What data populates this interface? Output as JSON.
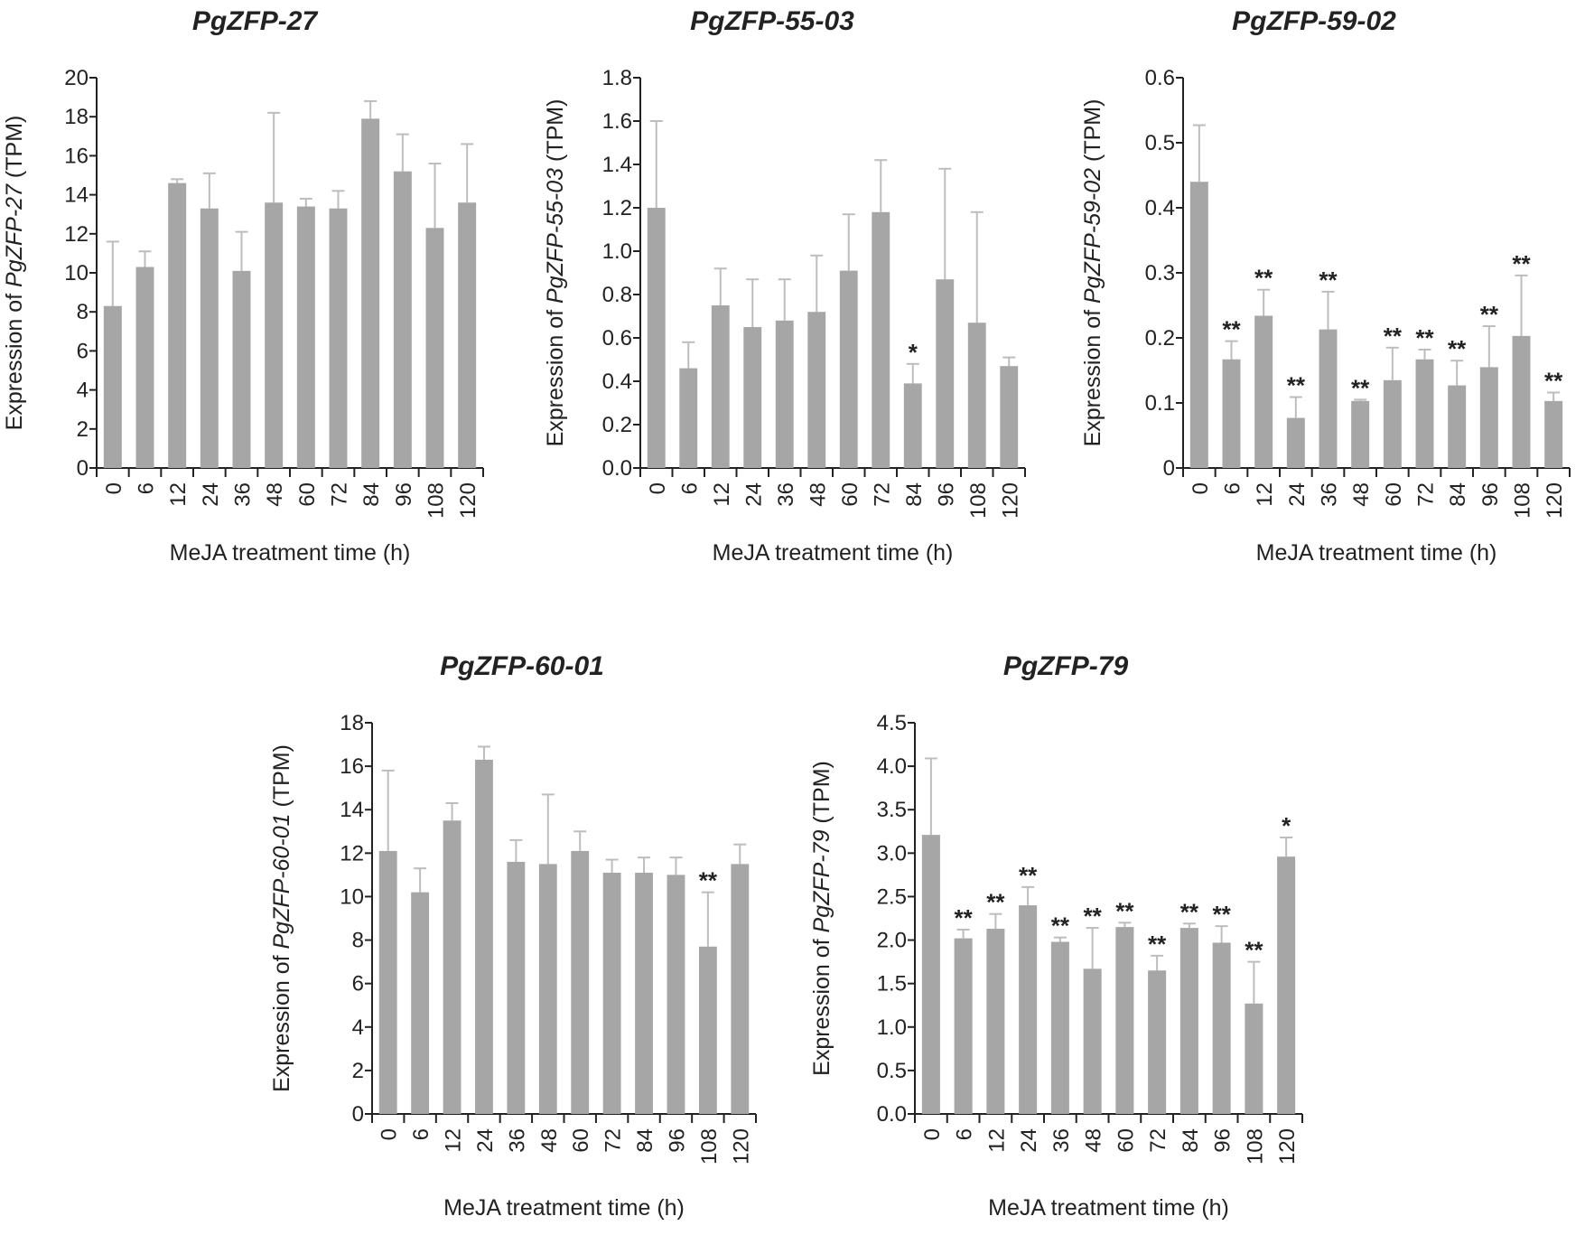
{
  "colors": {
    "bar": "#a6a6a6",
    "error_bar": "#bdbdbd",
    "axis": "#222222",
    "text": "#222222"
  },
  "chart_data": [
    {
      "type": "bar",
      "title": "PgZFP-27",
      "ylabel_prefix": "Expression of ",
      "ylabel_gene": "PgZFP-27",
      "ylabel_suffix": " (TPM)",
      "xlabel": "MeJA treatment time (h)",
      "categories": [
        "0",
        "6",
        "12",
        "24",
        "36",
        "48",
        "60",
        "72",
        "84",
        "96",
        "108",
        "120"
      ],
      "values": [
        8.3,
        10.3,
        14.6,
        13.3,
        10.1,
        13.6,
        13.4,
        13.3,
        17.9,
        15.2,
        12.3,
        13.6
      ],
      "errors": [
        3.3,
        0.8,
        0.2,
        1.8,
        2.0,
        4.6,
        0.4,
        0.9,
        0.9,
        1.9,
        3.3,
        3.0
      ],
      "significance": [
        "",
        "",
        "",
        "",
        "",
        "",
        "",
        "",
        "",
        "",
        "",
        ""
      ],
      "ylim": [
        0,
        20
      ],
      "yticks": [
        "0",
        "2",
        "4",
        "6",
        "8",
        "10",
        "12",
        "14",
        "16",
        "18",
        "20"
      ]
    },
    {
      "type": "bar",
      "title": "PgZFP-55-03",
      "ylabel_prefix": "Expression of ",
      "ylabel_gene": "PgZFP-55-03",
      "ylabel_suffix": " (TPM)",
      "xlabel": "MeJA treatment time (h)",
      "categories": [
        "0",
        "6",
        "12",
        "24",
        "36",
        "48",
        "60",
        "72",
        "84",
        "96",
        "108",
        "120"
      ],
      "values": [
        1.2,
        0.46,
        0.75,
        0.65,
        0.68,
        0.72,
        0.91,
        1.18,
        0.39,
        0.87,
        0.67,
        0.47
      ],
      "errors": [
        0.4,
        0.12,
        0.17,
        0.22,
        0.19,
        0.26,
        0.26,
        0.24,
        0.09,
        0.51,
        0.51,
        0.04
      ],
      "significance": [
        "",
        "",
        "",
        "",
        "",
        "",
        "",
        "",
        "*",
        "",
        "",
        ""
      ],
      "ylim": [
        0,
        1.8
      ],
      "yticks": [
        "0.0",
        "0.2",
        "0.4",
        "0.6",
        "0.8",
        "1.0",
        "1.2",
        "1.4",
        "1.6",
        "1.8"
      ]
    },
    {
      "type": "bar",
      "title": "PgZFP-59-02",
      "ylabel_prefix": "Expression of ",
      "ylabel_gene": "PgZFP-59-02",
      "ylabel_suffix": " (TPM)",
      "xlabel": "MeJA treatment time (h)",
      "categories": [
        "0",
        "6",
        "12",
        "24",
        "36",
        "48",
        "60",
        "72",
        "84",
        "96",
        "108",
        "120"
      ],
      "values": [
        0.44,
        0.167,
        0.234,
        0.077,
        0.213,
        0.103,
        0.135,
        0.167,
        0.127,
        0.155,
        0.203,
        0.103
      ],
      "errors": [
        0.087,
        0.028,
        0.04,
        0.032,
        0.058,
        0.002,
        0.05,
        0.015,
        0.038,
        0.063,
        0.093,
        0.013
      ],
      "significance": [
        "",
        "**",
        "**",
        "**",
        "**",
        "**",
        "**",
        "**",
        "**",
        "**",
        "**",
        "**"
      ],
      "ylim": [
        0,
        0.6
      ],
      "yticks": [
        "0",
        "0.1",
        "0.2",
        "0.3",
        "0.4",
        "0.5",
        "0.6"
      ]
    },
    {
      "type": "bar",
      "title": "PgZFP-60-01",
      "ylabel_prefix": "Expression of ",
      "ylabel_gene": "PgZFP-60-01",
      "ylabel_suffix": " (TPM)",
      "xlabel": "MeJA treatment time (h)",
      "categories": [
        "0",
        "6",
        "12",
        "24",
        "36",
        "48",
        "60",
        "72",
        "84",
        "96",
        "108",
        "120"
      ],
      "values": [
        12.1,
        10.2,
        13.5,
        16.3,
        11.6,
        11.5,
        12.1,
        11.1,
        11.1,
        11.0,
        7.7,
        11.5
      ],
      "errors": [
        3.7,
        1.1,
        0.8,
        0.6,
        1.0,
        3.2,
        0.9,
        0.6,
        0.7,
        0.8,
        2.5,
        0.9
      ],
      "significance": [
        "",
        "",
        "",
        "",
        "",
        "",
        "",
        "",
        "",
        "",
        "**",
        ""
      ],
      "ylim": [
        0,
        18
      ],
      "yticks": [
        "0",
        "2",
        "4",
        "6",
        "8",
        "10",
        "12",
        "14",
        "16",
        "18"
      ]
    },
    {
      "type": "bar",
      "title": "PgZFP-79",
      "ylabel_prefix": "Expression of ",
      "ylabel_gene": "PgZFP-79",
      "ylabel_suffix": " (TPM)",
      "xlabel": "MeJA treatment time (h)",
      "categories": [
        "0",
        "6",
        "12",
        "24",
        "36",
        "48",
        "60",
        "72",
        "84",
        "96",
        "108",
        "120"
      ],
      "values": [
        3.21,
        2.02,
        2.13,
        2.4,
        1.98,
        1.67,
        2.15,
        1.65,
        2.14,
        1.97,
        1.27,
        2.96
      ],
      "errors": [
        0.88,
        0.1,
        0.17,
        0.21,
        0.05,
        0.47,
        0.05,
        0.17,
        0.05,
        0.19,
        0.48,
        0.22
      ],
      "significance": [
        "",
        "**",
        "**",
        "**",
        "**",
        "**",
        "**",
        "**",
        "**",
        "**",
        "**",
        "*"
      ],
      "ylim": [
        0,
        4.5
      ],
      "yticks": [
        "0.0",
        "0.5",
        "1.0",
        "1.5",
        "2.0",
        "2.5",
        "3.0",
        "3.5",
        "4.0",
        "4.5"
      ]
    }
  ]
}
